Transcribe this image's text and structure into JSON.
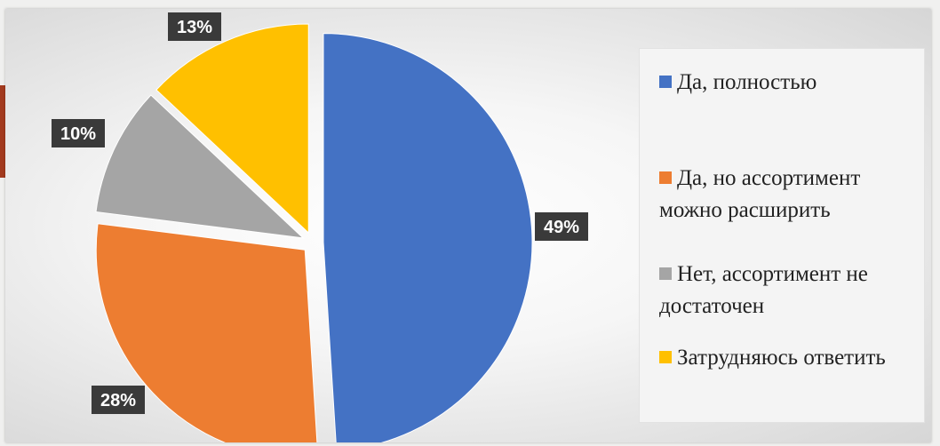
{
  "chart_data": {
    "type": "pie",
    "title": "",
    "slices": [
      {
        "label": "Да, полностью",
        "value": 49,
        "display": "49%",
        "color": "#4472c4"
      },
      {
        "label": "Да, но ассортимент можно расширить",
        "value": 28,
        "display": "28%",
        "color": "#ed7d31"
      },
      {
        "label": "Нет, ассортимент не достаточен",
        "value": 10,
        "display": "10%",
        "color": "#a5a5a5"
      },
      {
        "label": "Затрудняюсь ответить",
        "value": 13,
        "display": "13%",
        "color": "#ffc000"
      }
    ],
    "legend_position": "right",
    "exploded": true,
    "label_style": "dark boxes with white text"
  },
  "colors": {
    "label_box": "#3a3a3a",
    "label_text": "#ffffff",
    "slide_accent": "#a33a1e"
  }
}
